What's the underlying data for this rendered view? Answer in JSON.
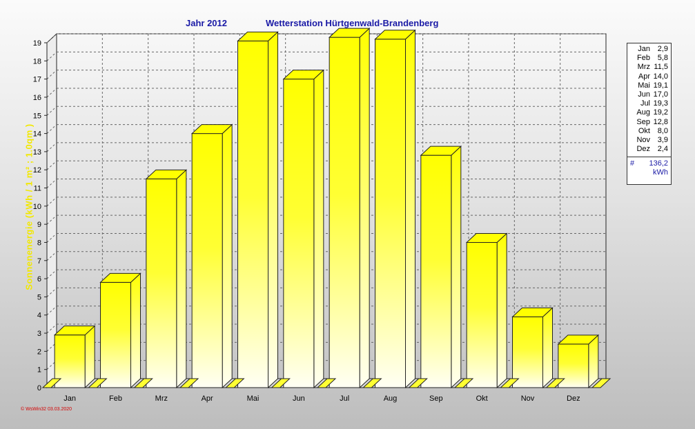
{
  "header": {
    "year_label": "Jahr  2012",
    "station": "Wetterstation Hürtgenwald-Brandenberg"
  },
  "chart_data": {
    "type": "bar",
    "title": "Jahr  2012    Wetterstation Hürtgenwald-Brandenberg",
    "ylabel": "Sonnenenergie  (kWh / 1 m² ; 1.0qm )",
    "categories": [
      "Jan",
      "Feb",
      "Mrz",
      "Apr",
      "Mai",
      "Jun",
      "Jul",
      "Aug",
      "Sep",
      "Okt",
      "Nov",
      "Dez"
    ],
    "values": [
      2.9,
      5.8,
      11.5,
      14.0,
      19.1,
      17.0,
      19.3,
      19.2,
      12.8,
      8.0,
      3.9,
      2.4
    ],
    "value_labels": [
      "2,9",
      "5,8",
      "11,5",
      "14,0",
      "19,1",
      "17,0",
      "19,3",
      "19,2",
      "12,8",
      "8,0",
      "3,9",
      "2,4"
    ],
    "yticks": [
      0,
      1,
      2,
      3,
      4,
      5,
      6,
      7,
      8,
      9,
      10,
      11,
      12,
      13,
      14,
      15,
      16,
      17,
      18,
      19
    ],
    "ylim": [
      0,
      19
    ],
    "grid": true,
    "legend_position": "right",
    "bar_color": "#ffff00",
    "total_label": "136,2",
    "total_symbol": "#",
    "unit": "kWh"
  },
  "footer": "© WsWin32  03.03.2020"
}
